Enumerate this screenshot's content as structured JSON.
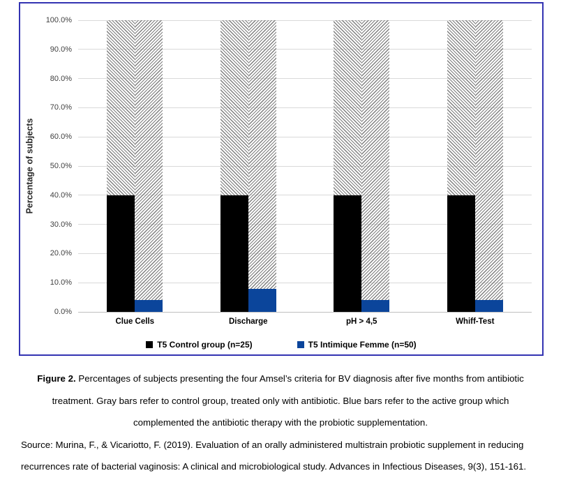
{
  "chart_data": {
    "type": "bar",
    "variant": "paired columns, solid value fill with hatched remainder up to 100%",
    "title": "",
    "xlabel": "",
    "ylabel": "Percentage of subjects",
    "ylim": [
      0,
      100
    ],
    "ytick_step": 10,
    "yticks": [
      "0.0%",
      "10.0%",
      "20.0%",
      "30.0%",
      "40.0%",
      "50.0%",
      "60.0%",
      "70.0%",
      "80.0%",
      "90.0%",
      "100.0%"
    ],
    "grid": true,
    "legend_position": "bottom",
    "categories": [
      "Clue Cells",
      "Discharge",
      "pH > 4,5",
      "Whiff-Test"
    ],
    "series": [
      {
        "name": "T5 Control group (n=25)",
        "values": [
          40,
          40,
          40,
          40
        ],
        "color": "#000000",
        "hatch_direction": "down"
      },
      {
        "name": "T5 Intimique Femme (n=50)",
        "values": [
          4,
          8,
          4,
          4
        ],
        "color": "#0B459B",
        "hatch_direction": "up"
      }
    ],
    "colors": {
      "grid": "#D9D9D9",
      "axis": "#BFBFBF",
      "hatch_line": "#7F7F7F",
      "tick_label": "#404040",
      "frame_border": "#3333B2"
    }
  },
  "caption": {
    "figure_label": "Figure 2.",
    "figure_text": " Percentages of subjects presenting the four Amsel’s criteria for BV diagnosis after five months from antibiotic treatment. Gray bars refer to control group, treated only with antibiotic. Blue bars refer to the active group which complemented the antibiotic therapy with the probiotic supplementation.",
    "source_text": "Source: Murina, F., & Vicariotto, F. (2019). Evaluation of an orally administered multistrain probiotic supplement in reducing recurrences rate of bacterial vaginosis: A clinical and microbiological study. Advances in Infectious Diseases, 9(3), 151-161."
  }
}
